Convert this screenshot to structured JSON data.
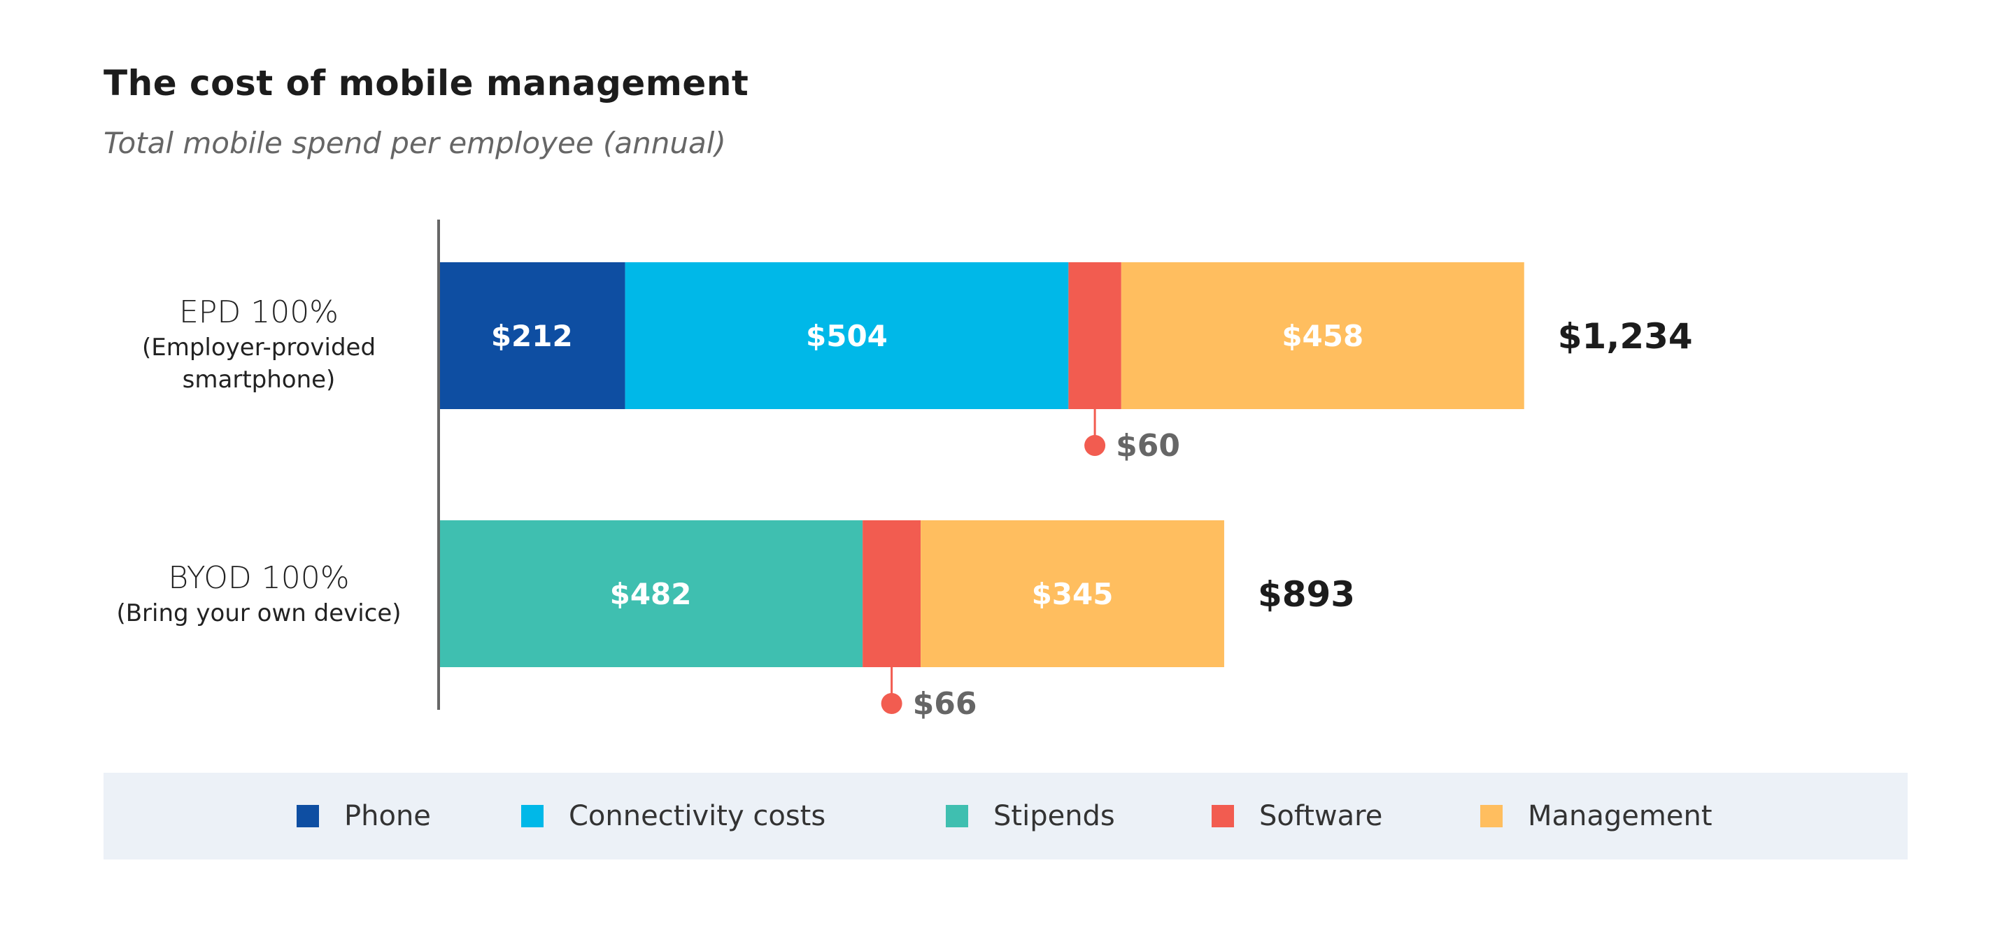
{
  "chart_data": {
    "type": "bar",
    "orientation": "horizontal",
    "stacked": true,
    "title": "The cost of mobile management",
    "subtitle": "Total mobile spend per employee (annual)",
    "categories": [
      {
        "label": "EPD 100%",
        "sublabel_1": "(Employer-provided",
        "sublabel_2": "smartphone)",
        "total_label": "$1,234"
      },
      {
        "label": "BYOD 100%",
        "sublabel_1": "(Bring your own device)",
        "sublabel_2": "",
        "total_label": "$893"
      }
    ],
    "series": [
      {
        "name": "Phone",
        "color": "#0e4ea2",
        "values": [
          212,
          0
        ],
        "labels": [
          "$212",
          ""
        ]
      },
      {
        "name": "Connectivity costs",
        "color": "#00b8e8",
        "values": [
          504,
          0
        ],
        "labels": [
          "$504",
          ""
        ]
      },
      {
        "name": "Stipends",
        "color": "#3fbfb0",
        "values": [
          0,
          482
        ],
        "labels": [
          "",
          "$482"
        ]
      },
      {
        "name": "Software",
        "color": "#f25c50",
        "values": [
          60,
          66
        ],
        "labels": [
          "$60",
          "$66"
        ],
        "callout": true
      },
      {
        "name": "Management",
        "color": "#ffbe5f",
        "values": [
          458,
          345
        ],
        "labels": [
          "$458",
          "$345"
        ]
      }
    ],
    "totals": [
      1234,
      893
    ],
    "grid": false,
    "legend_position": "bottom"
  }
}
